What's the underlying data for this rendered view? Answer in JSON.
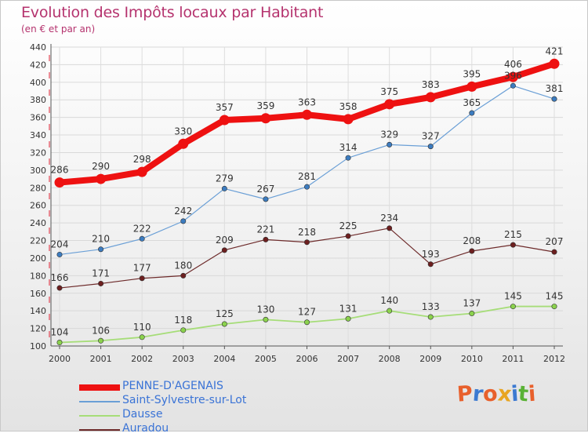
{
  "title": "Evolution des Impôts locaux par Habitant",
  "subtitle": "(en € et par an)",
  "logo": {
    "text": "Proxiti",
    "letters": [
      {
        "ch": "P",
        "color": "#e8602c"
      },
      {
        "ch": "r",
        "color": "#3c7ad1"
      },
      {
        "ch": "o",
        "color": "#e8602c"
      },
      {
        "ch": "x",
        "color": "#e8a521"
      },
      {
        "ch": "i",
        "color": "#3c7ad1"
      },
      {
        "ch": "t",
        "color": "#5ab236"
      },
      {
        "ch": "i",
        "color": "#e8602c"
      }
    ]
  },
  "chart_data": {
    "type": "line",
    "title": "Evolution des Impôts locaux par Habitant",
    "subtitle": "(en € et par an)",
    "xlabel": "",
    "ylabel": "",
    "ylim": [
      100,
      440
    ],
    "yticks": [
      100,
      120,
      140,
      160,
      180,
      200,
      220,
      240,
      260,
      280,
      300,
      320,
      340,
      360,
      380,
      400,
      420,
      440
    ],
    "grid": true,
    "legend_position": "bottom-left",
    "x": [
      "2000",
      "2001",
      "2002",
      "2003",
      "2004",
      "2005",
      "2006",
      "2007",
      "2008",
      "2009",
      "2010",
      "2011",
      "2012"
    ],
    "series": [
      {
        "name": "PENNE-D'AGENAIS",
        "color": "#ee1111",
        "marker": "#ee1111",
        "width": 8,
        "values": [
          286,
          290,
          298,
          330,
          357,
          359,
          363,
          358,
          375,
          383,
          395,
          406,
          421
        ]
      },
      {
        "name": "Saint-Sylvestre-sur-Lot",
        "color": "#6a9fd6",
        "marker": "#3c7cc0",
        "width": 1.2,
        "values": [
          204,
          210,
          222,
          242,
          279,
          267,
          281,
          314,
          329,
          327,
          365,
          396,
          381
        ]
      },
      {
        "name": "Dausse",
        "color": "#a6dd78",
        "marker": "#8bd24d",
        "width": 1.8,
        "values": [
          104,
          106,
          110,
          118,
          125,
          130,
          127,
          131,
          140,
          133,
          137,
          145,
          145
        ]
      },
      {
        "name": "Auradou",
        "color": "#6d2a2a",
        "marker": "#6d1f1f",
        "width": 1.2,
        "values": [
          166,
          171,
          177,
          180,
          209,
          221,
          218,
          225,
          234,
          193,
          208,
          215,
          207
        ]
      }
    ]
  }
}
